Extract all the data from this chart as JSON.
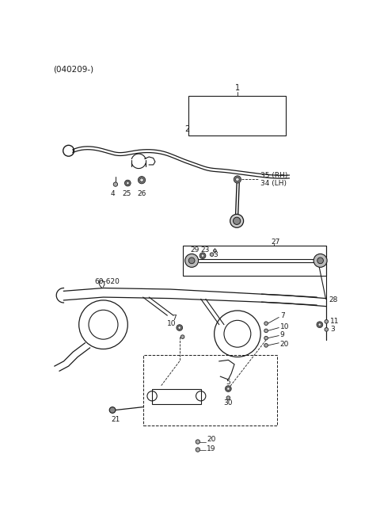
{
  "background_color": "#ffffff",
  "line_color": "#1a1a1a",
  "text_color": "#1a1a1a",
  "fig_width": 4.8,
  "fig_height": 6.55,
  "dpi": 100
}
